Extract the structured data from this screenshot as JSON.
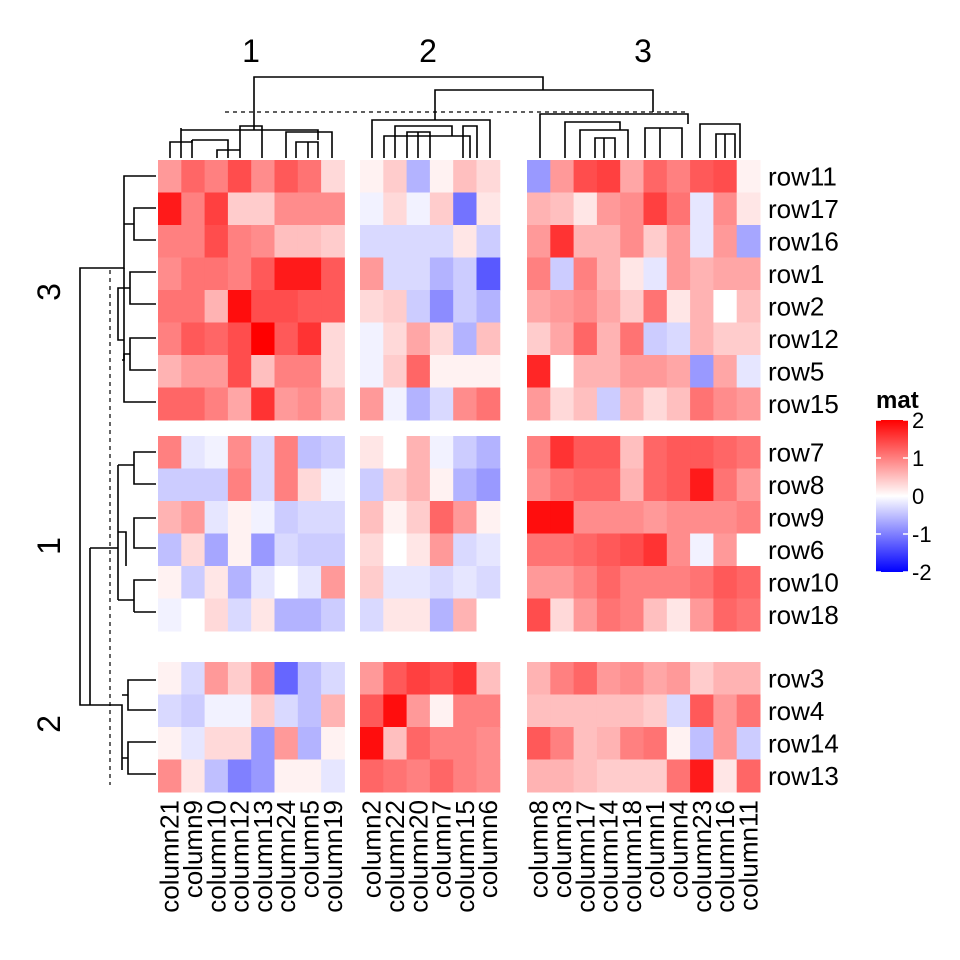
{
  "chart_data": {
    "type": "heatmap",
    "legend": {
      "title": "mat",
      "ticks": [
        2,
        1,
        0,
        -1,
        -2
      ],
      "tick_labels": [
        "2",
        "1",
        "0",
        "-1",
        "-2"
      ],
      "colors": {
        "low": "#0000ff",
        "mid": "#ffffff",
        "high": "#ff0000"
      },
      "range": [
        -2,
        2
      ]
    },
    "column_split_titles": [
      "1",
      "2",
      "3"
    ],
    "row_split_titles": [
      "3",
      "1",
      "2"
    ],
    "column_groups": [
      [
        "column21",
        "column9",
        "column10",
        "column12",
        "column13",
        "column24",
        "column5",
        "column19"
      ],
      [
        "column2",
        "column22",
        "column20",
        "column7",
        "column15",
        "column6"
      ],
      [
        "column8",
        "column3",
        "column17",
        "column14",
        "column18",
        "column1",
        "column4",
        "column23",
        "column16",
        "column11"
      ]
    ],
    "row_groups": [
      [
        "row11",
        "row17",
        "row16",
        "row1",
        "row2",
        "row12",
        "row5",
        "row15"
      ],
      [
        "row7",
        "row8",
        "row9",
        "row6",
        "row10",
        "row18"
      ],
      [
        "row3",
        "row4",
        "row14",
        "row13"
      ]
    ],
    "values": [
      [
        0.8,
        1.2,
        1.0,
        1.4,
        0.9,
        1.3,
        1.1,
        0.3,
        0.1,
        0.4,
        -0.6,
        0.1,
        0.5,
        0.3,
        -0.8,
        0.8,
        1.4,
        1.5,
        0.7,
        1.2,
        1.0,
        1.3,
        1.4,
        0.1
      ],
      [
        1.8,
        1.0,
        1.5,
        0.4,
        0.4,
        0.9,
        0.9,
        0.9,
        -0.1,
        0.3,
        -0.1,
        0.4,
        -1.1,
        0.2,
        0.6,
        0.5,
        0.2,
        0.8,
        0.9,
        1.5,
        1.1,
        -0.2,
        0.9,
        0.2
      ],
      [
        1.0,
        1.0,
        1.4,
        1.0,
        0.9,
        0.5,
        0.5,
        0.4,
        -0.3,
        -0.3,
        -0.3,
        -0.3,
        0.2,
        -0.4,
        0.8,
        1.6,
        0.6,
        0.6,
        0.9,
        0.4,
        0.8,
        -0.2,
        0.8,
        -0.7
      ],
      [
        0.9,
        1.1,
        1.1,
        1.0,
        1.3,
        1.8,
        1.8,
        1.3,
        0.8,
        -0.3,
        -0.3,
        -0.6,
        -0.4,
        -1.3,
        1.0,
        -0.4,
        1.0,
        0.6,
        0.2,
        -0.2,
        0.8,
        0.6,
        0.7,
        0.7
      ],
      [
        1.1,
        1.1,
        0.6,
        1.9,
        1.4,
        1.4,
        1.3,
        1.3,
        0.3,
        0.4,
        -0.4,
        -0.9,
        -0.4,
        -0.6,
        0.7,
        0.8,
        0.9,
        0.7,
        0.4,
        1.1,
        0.2,
        0.6,
        0.0,
        0.5
      ],
      [
        1.0,
        1.3,
        1.2,
        1.4,
        2.0,
        1.3,
        1.6,
        0.3,
        -0.1,
        0.3,
        0.7,
        0.3,
        -0.6,
        0.5,
        0.4,
        0.7,
        1.2,
        0.6,
        1.1,
        -0.4,
        -0.3,
        0.6,
        0.4,
        0.4
      ],
      [
        0.6,
        0.8,
        0.8,
        1.4,
        0.5,
        1.0,
        1.0,
        0.3,
        -0.1,
        0.4,
        1.2,
        0.1,
        0.1,
        0.1,
        1.7,
        0.0,
        0.6,
        0.6,
        0.8,
        0.8,
        0.7,
        -0.8,
        0.7,
        -0.2
      ],
      [
        1.2,
        1.2,
        1.0,
        0.7,
        1.6,
        0.8,
        0.9,
        0.6,
        0.8,
        -0.1,
        -0.6,
        -0.3,
        0.9,
        1.1,
        0.8,
        0.3,
        0.5,
        -0.4,
        0.6,
        0.3,
        0.5,
        1.1,
        0.9,
        0.8
      ],
      [
        1.0,
        -0.2,
        -0.1,
        0.9,
        -0.3,
        1.0,
        -0.5,
        -0.4,
        0.2,
        0.0,
        0.6,
        -0.1,
        -0.4,
        -0.6,
        1.0,
        1.6,
        1.3,
        1.3,
        0.5,
        1.2,
        1.3,
        1.3,
        1.2,
        1.1
      ],
      [
        -0.4,
        -0.4,
        -0.4,
        1.0,
        -0.3,
        1.0,
        0.3,
        -0.1,
        -0.4,
        0.4,
        0.6,
        0.1,
        -0.6,
        -0.8,
        0.9,
        1.1,
        1.2,
        1.2,
        0.6,
        1.2,
        1.3,
        1.8,
        1.1,
        0.8
      ],
      [
        0.6,
        0.8,
        -0.2,
        0.1,
        -0.1,
        -0.4,
        -0.3,
        -0.3,
        0.5,
        0.1,
        0.4,
        1.2,
        0.8,
        0.1,
        1.9,
        1.9,
        0.9,
        0.9,
        0.9,
        0.8,
        0.9,
        0.9,
        0.9,
        1.0
      ],
      [
        -0.5,
        0.3,
        -0.7,
        0.1,
        -0.8,
        -0.3,
        -0.4,
        -0.4,
        0.3,
        0.0,
        0.2,
        0.8,
        -0.3,
        -0.2,
        1.1,
        1.1,
        1.2,
        1.3,
        1.4,
        1.6,
        0.9,
        -0.1,
        0.8,
        0.0
      ],
      [
        0.1,
        -0.4,
        0.2,
        -0.6,
        -0.2,
        0.0,
        -0.2,
        0.8,
        0.4,
        -0.2,
        -0.2,
        -0.3,
        -0.2,
        -0.3,
        0.8,
        0.8,
        1.0,
        1.2,
        1.0,
        1.0,
        1.0,
        1.1,
        1.3,
        1.2
      ],
      [
        -0.1,
        0.0,
        0.3,
        -0.3,
        0.2,
        -0.6,
        -0.6,
        -0.4,
        -0.3,
        0.2,
        0.2,
        -0.6,
        0.6,
        0.0,
        1.4,
        0.3,
        0.8,
        1.1,
        1.0,
        0.5,
        0.2,
        0.8,
        1.2,
        1.1
      ],
      [
        0.1,
        -0.3,
        0.8,
        0.4,
        0.9,
        -1.2,
        -0.5,
        -0.3,
        0.8,
        1.3,
        1.5,
        1.4,
        1.6,
        0.5,
        0.6,
        1.0,
        1.2,
        0.8,
        0.9,
        0.7,
        0.8,
        0.4,
        0.6,
        0.6
      ],
      [
        -0.3,
        -0.4,
        -0.1,
        -0.1,
        0.4,
        -0.3,
        -0.5,
        0.6,
        1.3,
        1.9,
        0.8,
        0.1,
        1.0,
        1.0,
        0.5,
        0.5,
        0.5,
        0.5,
        0.5,
        0.4,
        -0.3,
        1.3,
        0.8,
        1.1
      ],
      [
        0.1,
        -0.2,
        0.3,
        0.3,
        -0.8,
        0.8,
        -0.6,
        0.1,
        1.9,
        0.5,
        1.2,
        1.0,
        1.0,
        0.9,
        1.3,
        1.0,
        0.5,
        0.6,
        1.0,
        1.1,
        0.1,
        -0.5,
        0.8,
        -0.4
      ],
      [
        0.9,
        0.2,
        -0.5,
        -1.0,
        -0.8,
        0.1,
        0.1,
        -0.2,
        1.2,
        1.1,
        1.0,
        1.2,
        1.0,
        0.9,
        0.6,
        0.6,
        0.5,
        0.4,
        0.4,
        0.4,
        1.1,
        1.8,
        0.2,
        1.2
      ]
    ]
  }
}
